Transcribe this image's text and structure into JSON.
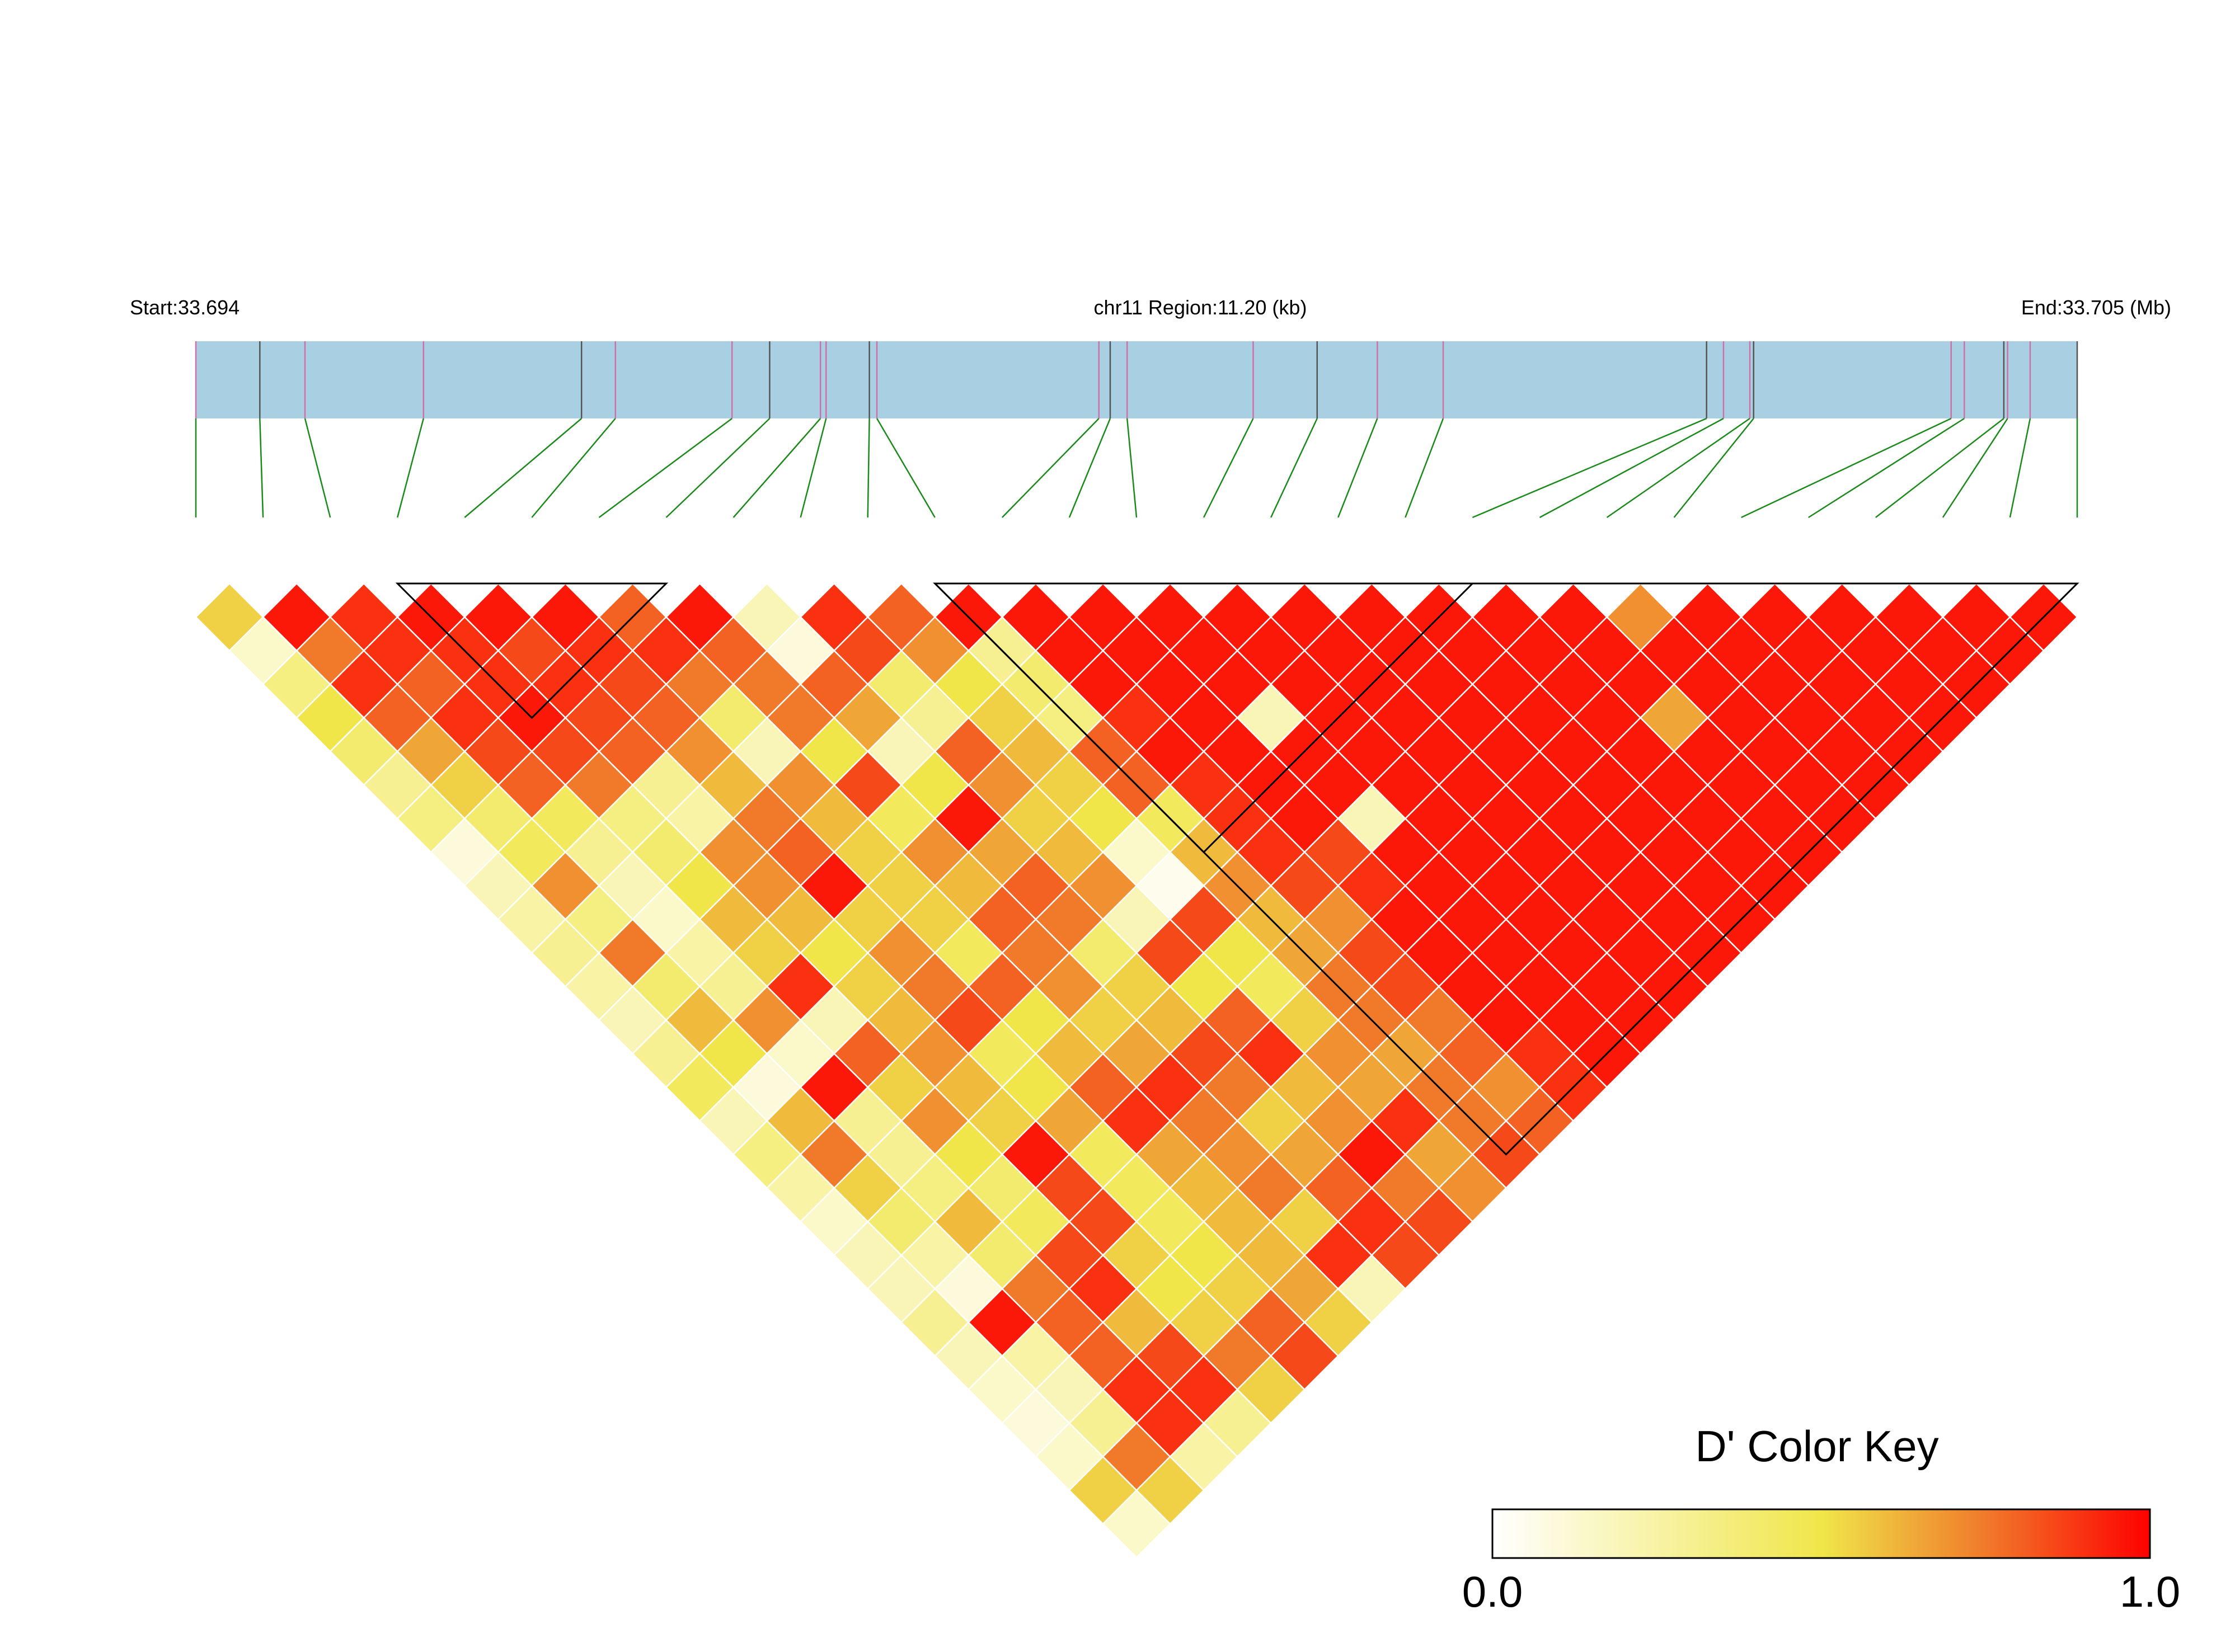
{
  "chart_data": {
    "type": "heatmap",
    "title": "",
    "header": {
      "start_label": "Start:33.694",
      "region_label": "chr11 Region:11.20 (kb)",
      "end_label": "End:33.705 (Mb)"
    },
    "region": {
      "chromosome": "chr11",
      "start_mb": 33.694,
      "end_mb": 33.705,
      "length_kb": 11.2
    },
    "snp_count": 29,
    "snp_positions_rel": [
      0,
      0.034,
      0.058,
      0.121,
      0.205,
      0.223,
      0.285,
      0.305,
      0.332,
      0.335,
      0.358,
      0.362,
      0.48,
      0.486,
      0.495,
      0.562,
      0.596,
      0.628,
      0.663,
      0.803,
      0.812,
      0.826,
      0.828,
      0.933,
      0.94,
      0.961,
      0.963,
      0.975,
      1.0
    ],
    "metric": "D'",
    "colorscale": {
      "title": "D' Color Key",
      "min": 0.0,
      "max": 1.0,
      "min_label": "0.0",
      "max_label": "1.0",
      "stops": [
        "#ffffff",
        "#f0e64a",
        "#f07a2a",
        "#ff0000"
      ]
    },
    "blocks": [
      [
        3,
        7
      ],
      [
        11,
        19
      ],
      [
        11,
        28
      ]
    ],
    "rows": [
      [
        0.55,
        0.95,
        0.9,
        0.95,
        0.95,
        0.95,
        0.8,
        0.95,
        0.2,
        0.9,
        0.8,
        0.95,
        0.95,
        0.95,
        0.95,
        0.95,
        0.95,
        0.95,
        0.95,
        0.95,
        0.95,
        0.7,
        0.95,
        0.95,
        0.95,
        0.95,
        0.95,
        0.95
      ],
      [
        0.15,
        0.75,
        0.9,
        0.9,
        0.85,
        0.9,
        0.9,
        0.8,
        0.1,
        0.85,
        0.7,
        0.3,
        0.95,
        0.95,
        0.95,
        0.95,
        0.95,
        0.95,
        0.95,
        0.95,
        0.95,
        0.95,
        0.95,
        0.95,
        0.95,
        0.95,
        0.95
      ],
      [
        0.35,
        0.9,
        0.8,
        0.9,
        0.9,
        0.85,
        0.75,
        0.75,
        0.8,
        0.4,
        0.5,
        0.4,
        0.95,
        0.95,
        0.95,
        0.95,
        0.95,
        0.95,
        0.95,
        0.95,
        0.95,
        0.95,
        0.95,
        0.95,
        0.95,
        0.95
      ],
      [
        0.5,
        0.8,
        0.9,
        0.95,
        0.85,
        0.8,
        0.4,
        0.75,
        0.65,
        0.3,
        0.55,
        0.35,
        0.9,
        0.95,
        0.2,
        0.95,
        0.95,
        0.95,
        0.95,
        0.95,
        0.65,
        0.95,
        0.95,
        0.95,
        0.95
      ],
      [
        0.4,
        0.65,
        0.85,
        0.85,
        0.8,
        0.7,
        0.2,
        0.5,
        0.2,
        0.8,
        0.6,
        0.8,
        0.95,
        0.95,
        0.95,
        0.95,
        0.95,
        0.95,
        0.95,
        0.95,
        0.95,
        0.95,
        0.95,
        0.95
      ],
      [
        0.3,
        0.55,
        0.8,
        0.75,
        0.3,
        0.6,
        0.7,
        0.85,
        0.5,
        0.7,
        0.55,
        0.8,
        0.9,
        0.95,
        0.95,
        0.95,
        0.95,
        0.95,
        0.95,
        0.95,
        0.95,
        0.95,
        0.95
      ],
      [
        0.35,
        0.4,
        0.45,
        0.35,
        0.25,
        0.75,
        0.6,
        0.45,
        0.95,
        0.55,
        0.5,
        0.45,
        0.9,
        0.95,
        0.2,
        0.95,
        0.95,
        0.95,
        0.95,
        0.95,
        0.95,
        0.95
      ],
      [
        0.1,
        0.45,
        0.3,
        0.4,
        0.7,
        0.8,
        0.55,
        0.7,
        0.65,
        0.6,
        0.15,
        0.6,
        0.9,
        0.85,
        0.95,
        0.95,
        0.95,
        0.95,
        0.95,
        0.95,
        0.95
      ],
      [
        0.2,
        0.7,
        0.2,
        0.5,
        0.7,
        0.95,
        0.55,
        0.6,
        0.8,
        0.7,
        0.05,
        0.7,
        0.85,
        0.9,
        0.95,
        0.95,
        0.95,
        0.95,
        0.95,
        0.95
      ],
      [
        0.25,
        0.35,
        0.15,
        0.6,
        0.6,
        0.55,
        0.55,
        0.8,
        0.75,
        0.2,
        0.85,
        0.6,
        0.7,
        0.95,
        0.95,
        0.95,
        0.95,
        0.95,
        0.95
      ],
      [
        0.3,
        0.75,
        0.25,
        0.55,
        0.5,
        0.7,
        0.45,
        0.75,
        0.4,
        0.85,
        0.5,
        0.65,
        0.85,
        0.95,
        0.95,
        0.95,
        0.95,
        0.95
      ],
      [
        0.25,
        0.4,
        0.3,
        0.9,
        0.55,
        0.75,
        0.8,
        0.7,
        0.55,
        0.5,
        0.45,
        0.75,
        0.85,
        0.95,
        0.95,
        0.95,
        0.95
      ],
      [
        0.2,
        0.6,
        0.7,
        0.2,
        0.6,
        0.85,
        0.5,
        0.55,
        0.6,
        0.8,
        0.55,
        0.75,
        0.75,
        0.95,
        0.95,
        0.95
      ],
      [
        0.3,
        0.5,
        0.15,
        0.8,
        0.7,
        0.45,
        0.6,
        0.65,
        0.85,
        0.9,
        0.7,
        0.65,
        0.8,
        0.9,
        0.95
      ],
      [
        0.45,
        0.1,
        0.95,
        0.55,
        0.6,
        0.5,
        0.8,
        0.9,
        0.75,
        0.6,
        0.65,
        0.75,
        0.7,
        0.9
      ],
      [
        0.2,
        0.6,
        0.3,
        0.7,
        0.55,
        0.65,
        0.9,
        0.75,
        0.55,
        0.7,
        0.9,
        0.75,
        0.8
      ],
      [
        0.35,
        0.75,
        0.3,
        0.5,
        0.95,
        0.45,
        0.65,
        0.7,
        0.65,
        0.95,
        0.65,
        0.85
      ],
      [
        0.25,
        0.55,
        0.35,
        0.4,
        0.85,
        0.45,
        0.6,
        0.75,
        0.8,
        0.75,
        0.7
      ],
      [
        0.15,
        0.4,
        0.6,
        0.45,
        0.85,
        0.45,
        0.6,
        0.55,
        0.9,
        0.85
      ],
      [
        0.2,
        0.25,
        0.4,
        0.85,
        0.55,
        0.5,
        0.6,
        0.9,
        0.85
      ],
      [
        0.2,
        0.1,
        0.75,
        0.9,
        0.5,
        0.55,
        0.65,
        0.2
      ],
      [
        0.3,
        0.95,
        0.8,
        0.6,
        0.55,
        0.8,
        0.55
      ],
      [
        0.2,
        0.25,
        0.8,
        0.85,
        0.75,
        0.85
      ],
      [
        0.15,
        0.2,
        0.9,
        0.9,
        0.55
      ],
      [
        0.1,
        0.3,
        0.9,
        0.3
      ],
      [
        0.15,
        0.75,
        0.25
      ],
      [
        0.55,
        0.55
      ],
      [
        0.15
      ]
    ]
  }
}
